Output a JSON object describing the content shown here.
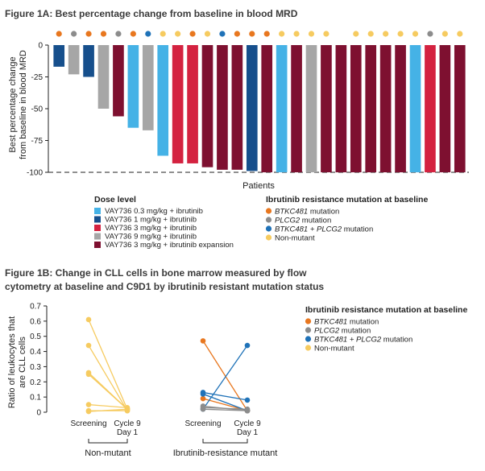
{
  "colors": {
    "dose_0_3": "#45b2e6",
    "dose_1": "#164f8c",
    "dose_3": "#d42240",
    "dose_9": "#a6a6a6",
    "dose_3_exp": "#7e1030",
    "btk": "#e8771f",
    "plcg2": "#8c8c8c",
    "btk_plcg2": "#1f72b8",
    "nonmut": "#f6cb60"
  },
  "figure_1a": {
    "title": "Figure 1A: Best percentage change from baseline in blood MRD",
    "chart_data": {
      "type": "bar",
      "title": "Figure 1A: Best percentage change from baseline in blood MRD",
      "xlabel": "Patients",
      "ylabel": [
        "Best percentage change",
        "from baseline in blood MRD"
      ],
      "ylim": [
        -100,
        0
      ],
      "yticks": [
        0,
        -25,
        -50,
        -75,
        -100
      ],
      "reference_line": -100,
      "values": [
        -17,
        -23,
        -25,
        -50,
        -56,
        -65,
        -67,
        -87,
        -93,
        -93,
        -96,
        -98,
        -98,
        -99,
        -100,
        -100,
        -100,
        -100,
        -100,
        -100,
        -100,
        -100,
        -100,
        -100,
        -100,
        -100,
        -100,
        -100
      ],
      "dose": [
        "d1",
        "d9",
        "d1",
        "d9",
        "d3e",
        "d03",
        "d9",
        "d03",
        "d3",
        "d3",
        "d3e",
        "d3e",
        "d3e",
        "d1",
        "d3e",
        "d03",
        "d3e",
        "d9",
        "d3e",
        "d3e",
        "d3e",
        "d3e",
        "d3e",
        "d3e",
        "d03",
        "d3",
        "d3e",
        "d3e"
      ],
      "mutation": [
        "btk",
        "plcg2",
        "btk",
        "btk",
        "plcg2",
        "btk",
        "btk_plcg2",
        "nonmut",
        "nonmut",
        "btk",
        "nonmut",
        "btk_plcg2",
        "btk",
        "btk",
        "btk",
        "nonmut",
        "nonmut",
        "nonmut",
        "nonmut",
        "none",
        "nonmut",
        "nonmut",
        "nonmut",
        "nonmut",
        "nonmut",
        "plcg2",
        "nonmut",
        "nonmut"
      ],
      "legend_dose": {
        "title": "Dose level",
        "items": [
          {
            "key": "d03",
            "label": "VAY736 0.3 mg/kg + ibrutinib"
          },
          {
            "key": "d1",
            "label": "VAY736 1 mg/kg + ibrutinib"
          },
          {
            "key": "d3",
            "label": "VAY736 3 mg/kg + ibrutinib"
          },
          {
            "key": "d9",
            "label": "VAY736 9 mg/kg + ibrutinib"
          },
          {
            "key": "d3e",
            "label": "VAY736 3 mg/kg + ibrutinib expansion"
          }
        ]
      },
      "legend_mutation": {
        "title": "Ibrutinib resistance mutation at baseline",
        "items": [
          {
            "key": "btk",
            "italic": "BTKC481",
            "rest": " mutation"
          },
          {
            "key": "plcg2",
            "italic": "PLCG2",
            "rest": " mutation"
          },
          {
            "key": "btk_plcg2",
            "italic": "BTKC481 + PLCG2",
            "rest": " mutation"
          },
          {
            "key": "nonmut",
            "italic": "",
            "rest": "Non-mutant"
          }
        ]
      }
    }
  },
  "figure_1b": {
    "title_line1": "Figure 1B: Change in CLL cells in bone marrow measured by flow",
    "title_line2": "cytometry at baseline and C9D1 by ibrutinib resistant mutation status",
    "chart_data": {
      "type": "line",
      "title": "Figure 1B: Change in CLL cells in bone marrow measured by flow cytometry at baseline and C9D1 by ibrutinib resistant mutation status",
      "ylabel": [
        "Ratio of leukocytes that",
        "are CLL cells"
      ],
      "ylim": [
        0,
        0.7
      ],
      "yticks": [
        0,
        0.1,
        0.2,
        0.3,
        0.4,
        0.5,
        0.6,
        0.7
      ],
      "ytick_labels": [
        "0",
        "0.1",
        "0.2",
        "0.3",
        "0.4",
        "0.5",
        "0.6",
        "0.7"
      ],
      "timepoints": [
        {
          "line1": "Screening",
          "line2": ""
        },
        {
          "line1": "Cycle 9",
          "line2": "Day 1"
        }
      ],
      "groups": [
        {
          "label": "Non-mutant",
          "series": [
            {
              "mutation": "nonmut",
              "values": [
                0.61,
                0.02
              ]
            },
            {
              "mutation": "nonmut",
              "values": [
                0.44,
                0.01
              ]
            },
            {
              "mutation": "nonmut",
              "values": [
                0.26,
                0.02
              ]
            },
            {
              "mutation": "nonmut",
              "values": [
                0.25,
                0.02
              ]
            },
            {
              "mutation": "nonmut",
              "values": [
                0.05,
                0.03
              ]
            },
            {
              "mutation": "nonmut",
              "values": [
                0.01,
                0.01
              ]
            },
            {
              "mutation": "nonmut",
              "values": [
                0.005,
                0.02
              ]
            }
          ]
        },
        {
          "label": "Ibrutinib-resistance mutant",
          "series": [
            {
              "mutation": "btk",
              "values": [
                0.47,
                0.01
              ]
            },
            {
              "mutation": "btk",
              "values": [
                0.09,
                0.01
              ]
            },
            {
              "mutation": "btk_plcg2",
              "values": [
                0.13,
                0.08
              ]
            },
            {
              "mutation": "btk_plcg2",
              "values": [
                0.12,
                0.01
              ]
            },
            {
              "mutation": "btk_plcg2",
              "values": [
                0.02,
                0.44
              ]
            },
            {
              "mutation": "plcg2",
              "values": [
                0.04,
                0.01
              ]
            },
            {
              "mutation": "plcg2",
              "values": [
                0.02,
                0.01
              ]
            },
            {
              "mutation": "plcg2",
              "values": [
                0.03,
                0.02
              ]
            }
          ]
        }
      ],
      "legend": {
        "title": "Ibrutinib resistance mutation at baseline",
        "items": [
          {
            "key": "btk",
            "italic": "BTKC481",
            "rest": " mutation"
          },
          {
            "key": "plcg2",
            "italic": "PLCG2",
            "rest": " mutation"
          },
          {
            "key": "btk_plcg2",
            "italic": "BTKC481 + PLCG2",
            "rest": " mutation"
          },
          {
            "key": "nonmut",
            "italic": "",
            "rest": "Non-mutant"
          }
        ]
      }
    }
  }
}
